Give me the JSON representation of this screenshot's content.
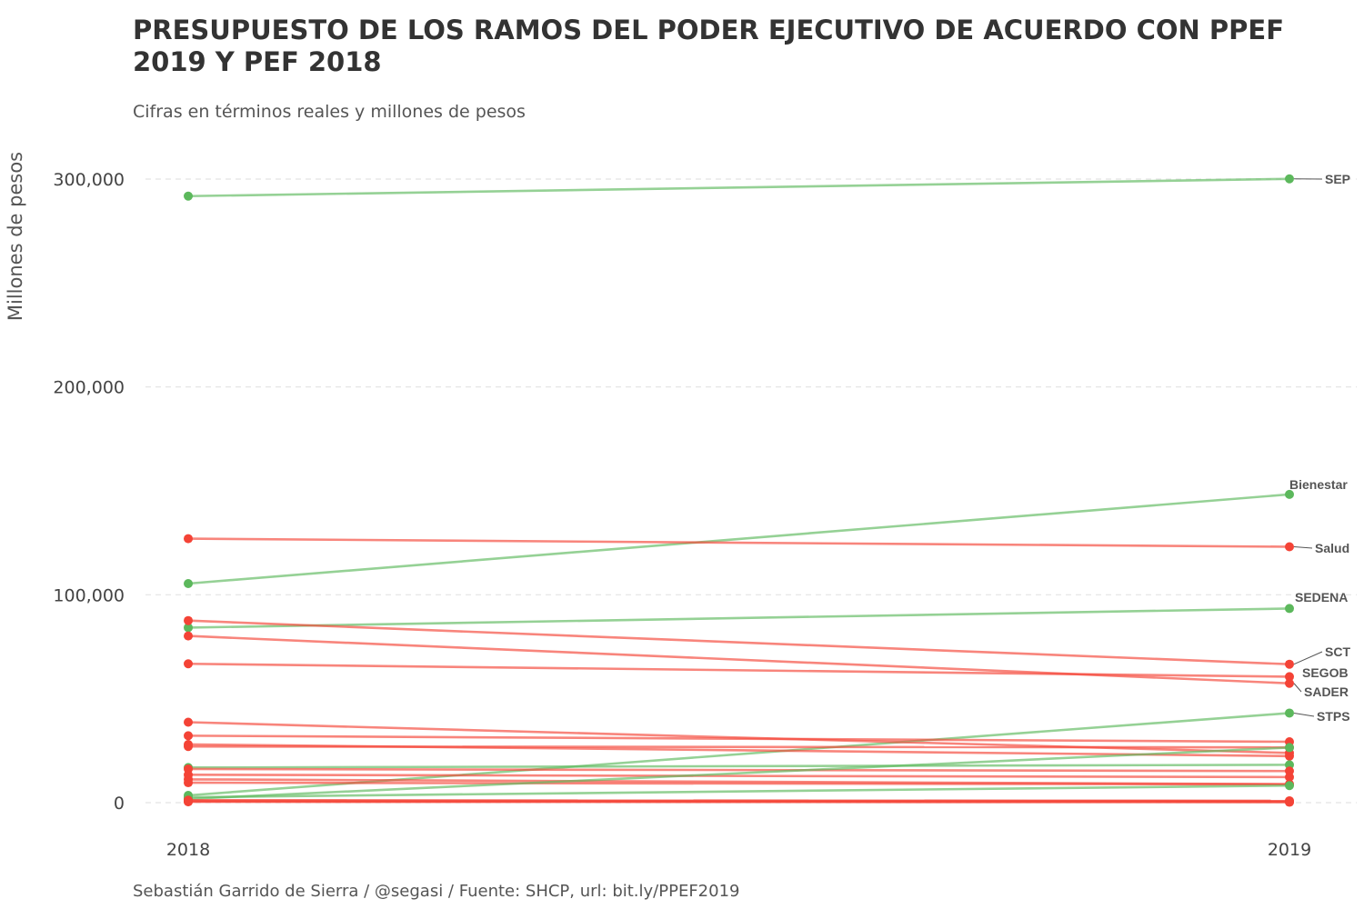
{
  "chart_data": {
    "type": "line",
    "title": "PRESUPUESTO DE LOS RAMOS DEL PODER EJECUTIVO DE ACUERDO CON PPEF 2019 Y PEF 2018",
    "subtitle": "Cifras en términos reales y millones de pesos",
    "caption": "Sebastián Garrido de Sierra / @segasi / Fuente: SHCP, url: bit.ly/PPEF2019",
    "xlabel": "",
    "ylabel": "Millones de pesos",
    "x": [
      "2018",
      "2019"
    ],
    "y_ticks": [
      0,
      100000,
      200000,
      300000
    ],
    "y_tick_labels": [
      "0",
      "100,000",
      "200,000",
      "300,000"
    ],
    "ylim": [
      -12000,
      320000
    ],
    "grid": "horizontal",
    "colors": {
      "increase": "#5cb85c",
      "decrease": "#f44336"
    },
    "series": [
      {
        "name": "SEP",
        "values": [
          291800,
          300100
        ],
        "trend": "up"
      },
      {
        "name": "Bienestar",
        "values": [
          105400,
          148300
        ],
        "trend": "up"
      },
      {
        "name": "Salud",
        "values": [
          127000,
          123100
        ],
        "trend": "down"
      },
      {
        "name": "SEDENA",
        "values": [
          84200,
          93400
        ],
        "trend": "up"
      },
      {
        "name": "SCT",
        "values": [
          87600,
          66600
        ],
        "trend": "down"
      },
      {
        "name": "SEGOB",
        "values": [
          66800,
          60600
        ],
        "trend": "down"
      },
      {
        "name": "SADER",
        "values": [
          80200,
          57400
        ],
        "trend": "down"
      },
      {
        "name": "STPS",
        "values": [
          3500,
          43100
        ],
        "trend": "up"
      },
      {
        "values": [
          38700,
          23900
        ],
        "trend": "down"
      },
      {
        "values": [
          32200,
          29300
        ],
        "trend": "down"
      },
      {
        "values": [
          28000,
          22400
        ],
        "trend": "down"
      },
      {
        "values": [
          27000,
          26600
        ],
        "trend": "down"
      },
      {
        "values": [
          16900,
          18200
        ],
        "trend": "up"
      },
      {
        "values": [
          16200,
          15200
        ],
        "trend": "down"
      },
      {
        "values": [
          13400,
          12300
        ],
        "trend": "down"
      },
      {
        "values": [
          11200,
          8900
        ],
        "trend": "down"
      },
      {
        "values": [
          9600,
          8800
        ],
        "trend": "down"
      },
      {
        "values": [
          1800,
          26500
        ],
        "trend": "up"
      },
      {
        "values": [
          2600,
          8200
        ],
        "trend": "up"
      },
      {
        "values": [
          1200,
          900
        ],
        "trend": "down"
      },
      {
        "values": [
          900,
          700
        ],
        "trend": "down"
      },
      {
        "values": [
          600,
          500
        ],
        "trend": "down"
      },
      {
        "values": [
          400,
          200
        ],
        "trend": "down"
      }
    ]
  }
}
